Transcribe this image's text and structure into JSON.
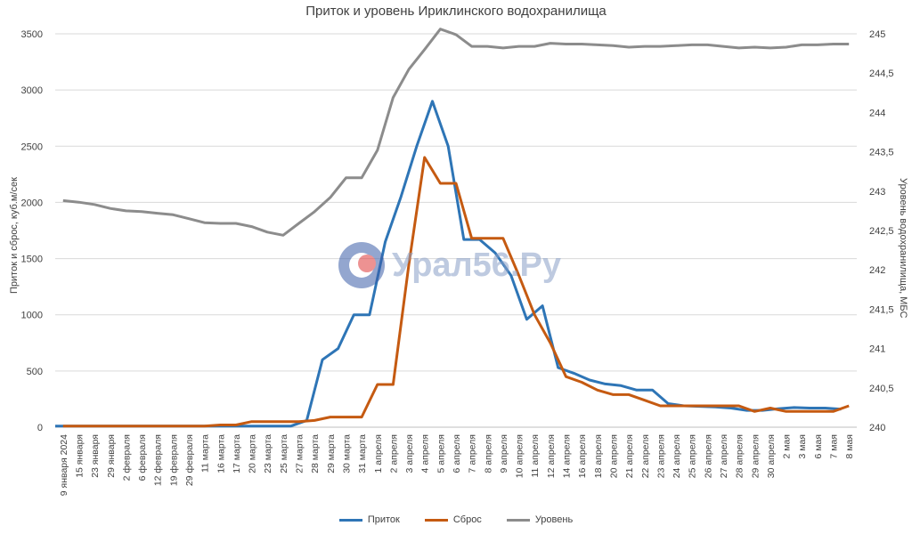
{
  "chart_data": {
    "type": "line",
    "title": "Приток и уровень Ириклинского водохранилища",
    "ylabel": "Приток и сброс, куб.м/сек",
    "y2label": "Уровень водохранилища, МБС",
    "ylim": [
      0,
      3500
    ],
    "y2lim": [
      240,
      245
    ],
    "yticks": [
      "0",
      "500",
      "1000",
      "1500",
      "2000",
      "2500",
      "3000",
      "3500"
    ],
    "y2ticks": [
      "240",
      "240,5",
      "241",
      "241,5",
      "242",
      "242,5",
      "243",
      "243,5",
      "244",
      "244,5",
      "245"
    ],
    "grid": true,
    "legend_position": "bottom",
    "categories": [
      "9 января 2024",
      "15 января",
      "23 января",
      "29 января",
      "2 февраля",
      "6 февраля",
      "12 февраля",
      "19 февраля",
      "29 февраля",
      "11 марта",
      "16 марта",
      "17 марта",
      "20 марта",
      "23 марта",
      "25 марта",
      "27 марта",
      "28 марта",
      "29 марта",
      "30 марта",
      "31 марта",
      "1 апреля",
      "2 апреля",
      "3 апреля",
      "4 апреля",
      "5 апреля",
      "6 апреля",
      "7 апреля",
      "8 апреля",
      "9 апреля",
      "10 апреля",
      "11 апреля",
      "12 апреля",
      "14 апреля",
      "16 апреля",
      "18 апреля",
      "20 апреля",
      "21 апреля",
      "22 апреля",
      "23 апреля",
      "24 апреля",
      "25 апреля",
      "26 апреля",
      "27 апреля",
      "28 апреля",
      "29 апреля",
      "30 апреля",
      "2 мая",
      "3 мая",
      "6 мая",
      "7 мая",
      "8 мая"
    ],
    "series": [
      {
        "name": "Приток",
        "color": "#2e75b6",
        "axis": "left",
        "x_offset": 0.0,
        "values": [
          10,
          10,
          10,
          10,
          10,
          10,
          10,
          10,
          10,
          10,
          10,
          10,
          10,
          10,
          10,
          10,
          60,
          600,
          700,
          1000,
          1000,
          1650,
          2050,
          2500,
          2900,
          2500,
          1670,
          1670,
          1550,
          1350,
          960,
          1080,
          530,
          480,
          420,
          385,
          370,
          330,
          330,
          210,
          190,
          185,
          180,
          170,
          150,
          150,
          165,
          175,
          170,
          170,
          160
        ]
      },
      {
        "name": "Сброс",
        "color": "#c55a11",
        "axis": "left",
        "x_offset": 0.5,
        "values": [
          10,
          10,
          10,
          10,
          10,
          10,
          10,
          10,
          10,
          10,
          20,
          20,
          50,
          50,
          50,
          50,
          60,
          90,
          90,
          90,
          380,
          380,
          1450,
          2400,
          2170,
          2170,
          1680,
          1680,
          1680,
          1350,
          1000,
          750,
          450,
          400,
          330,
          290,
          290,
          240,
          190,
          190,
          190,
          190,
          190,
          190,
          140,
          170,
          140,
          140,
          140,
          140,
          190
        ]
      },
      {
        "name": "Уровень",
        "color": "#8c8c8c",
        "axis": "right",
        "x_offset": 0.5,
        "values": [
          242.88,
          242.86,
          242.83,
          242.78,
          242.75,
          242.74,
          242.72,
          242.7,
          242.65,
          242.6,
          242.59,
          242.59,
          242.55,
          242.48,
          242.44,
          242.59,
          242.74,
          242.92,
          243.17,
          243.17,
          243.52,
          244.19,
          244.55,
          244.8,
          245.06,
          244.99,
          244.84,
          244.84,
          244.82,
          244.84,
          244.84,
          244.88,
          244.87,
          244.87,
          244.86,
          244.85,
          244.83,
          244.84,
          244.84,
          244.85,
          244.86,
          244.86,
          244.84,
          244.82,
          244.83,
          244.82,
          244.83,
          244.86,
          244.86,
          244.87,
          244.87
        ]
      }
    ]
  },
  "watermark": {
    "text": "Урал56.Ру"
  }
}
